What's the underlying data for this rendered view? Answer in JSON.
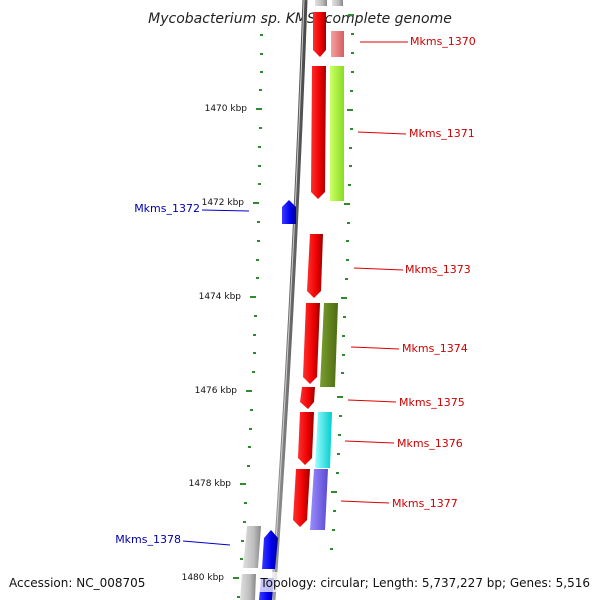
{
  "title": "Mycobacterium sp. KMS, complete genome",
  "accession": "Accession: NC_008705",
  "summary": "Topology: circular; Length: 5,737,227 bp; Genes: 5,516",
  "ruler": [
    "1470 kbp",
    "1472 kbp",
    "1474 kbp",
    "1476 kbp",
    "1478 kbp",
    "1480 kbp"
  ],
  "genes": [
    {
      "name": "Mkms_1370",
      "side": "right",
      "color": "#cc0000"
    },
    {
      "name": "Mkms_1371",
      "side": "right",
      "color": "#cc0000"
    },
    {
      "name": "Mkms_1372",
      "side": "left",
      "color": "#0000aa"
    },
    {
      "name": "Mkms_1373",
      "side": "right",
      "color": "#cc0000"
    },
    {
      "name": "Mkms_1374",
      "side": "right",
      "color": "#cc0000"
    },
    {
      "name": "Mkms_1375",
      "side": "right",
      "color": "#cc0000"
    },
    {
      "name": "Mkms_1376",
      "side": "right",
      "color": "#cc0000"
    },
    {
      "name": "Mkms_1377",
      "side": "right",
      "color": "#cc0000"
    },
    {
      "name": "Mkms_1378",
      "side": "left",
      "color": "#0000aa"
    }
  ],
  "colors": {
    "forward_strand": "#ff0000",
    "reverse_strand": "#0000ff",
    "backbone": "#8a8a8a",
    "ticks": "#2e8b2e",
    "cog_1370": "#f08080",
    "cog_1371": "#aaff33",
    "cog_1374": "#6b8e23",
    "cog_1376": "#00ffff",
    "cog_1377": "#7b68ee",
    "unknown": "#bbbbbb"
  }
}
